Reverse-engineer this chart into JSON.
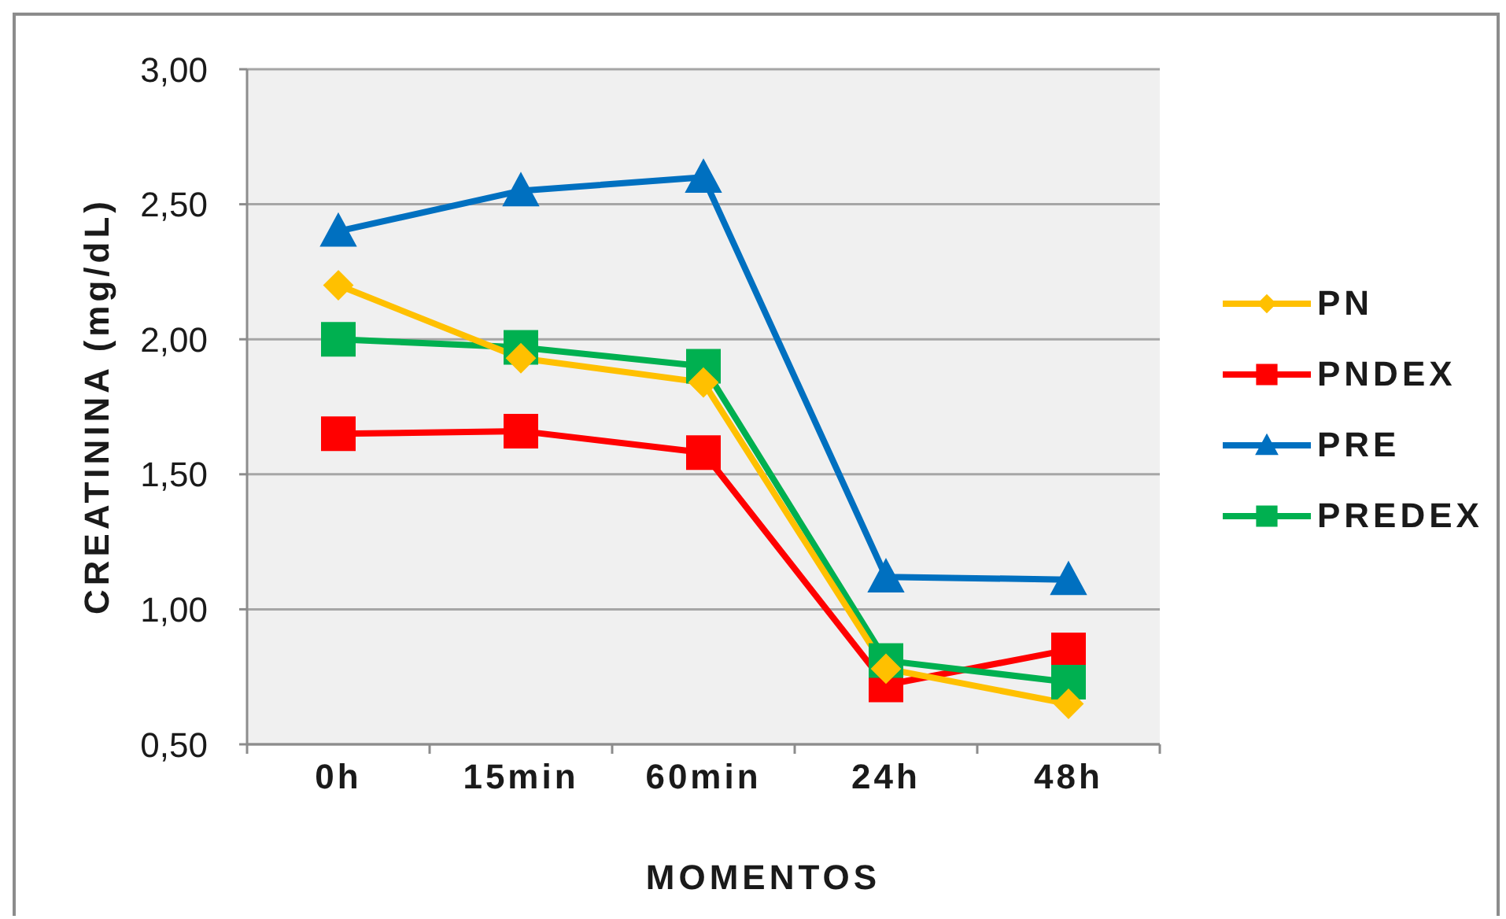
{
  "chart_data": {
    "type": "line",
    "xlabel": "MOMENTOS",
    "ylabel": "CREATININA (mg/dL)",
    "categories": [
      "0h",
      "15min",
      "60min",
      "24h",
      "48h"
    ],
    "series": [
      {
        "name": "PN",
        "color": "#ffc000",
        "marker": "diamond",
        "values": [
          2.2,
          1.93,
          1.84,
          0.78,
          0.65
        ]
      },
      {
        "name": "PNDEX",
        "color": "#ff0000",
        "marker": "square",
        "values": [
          1.65,
          1.66,
          1.58,
          0.72,
          0.85
        ]
      },
      {
        "name": "PRE",
        "color": "#0070c0",
        "marker": "triangle",
        "values": [
          2.4,
          2.55,
          2.6,
          1.12,
          1.11
        ]
      },
      {
        "name": "PREDEX",
        "color": "#00b050",
        "marker": "square",
        "values": [
          2.0,
          1.97,
          1.9,
          0.81,
          0.73
        ]
      }
    ],
    "ylim": [
      0.5,
      3
    ],
    "yticks": [
      {
        "value": 0.5,
        "label": "0,50"
      },
      {
        "value": 1,
        "label": "1,00"
      },
      {
        "value": 1.5,
        "label": "1,50"
      },
      {
        "value": 2,
        "label": "2,00"
      },
      {
        "value": 2.5,
        "label": "2,50"
      },
      {
        "value": 3,
        "label": "3,00"
      }
    ],
    "grid": "y",
    "legend": "right",
    "line_style": "solid"
  }
}
